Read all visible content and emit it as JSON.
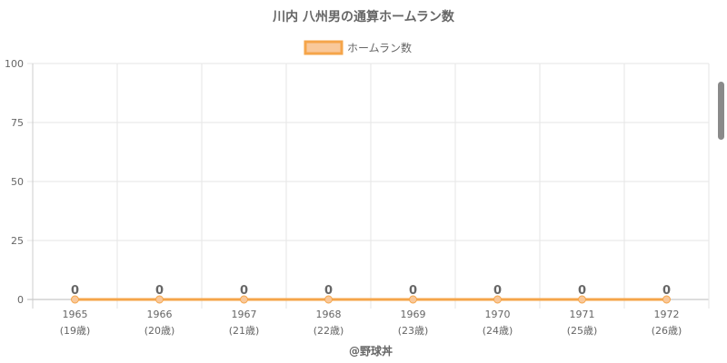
{
  "chart_data": {
    "type": "line",
    "title": "川内 八州男の通算ホームラン数",
    "legend": {
      "label": "ホームラン数",
      "position": "top"
    },
    "categories": [
      "1965",
      "1966",
      "1967",
      "1968",
      "1969",
      "1970",
      "1971",
      "1972"
    ],
    "sublabels": [
      "(19歳)",
      "(20歳)",
      "(21歳)",
      "(22歳)",
      "(23歳)",
      "(24歳)",
      "(25歳)",
      "(26歳)"
    ],
    "series": [
      {
        "name": "ホームラン数",
        "values": [
          0,
          0,
          0,
          0,
          0,
          0,
          0,
          0
        ],
        "color": "#f5a54a",
        "fill": "#f9c89a"
      }
    ],
    "ylim": [
      0,
      100
    ],
    "yticks": [
      0,
      25,
      50,
      75,
      100
    ],
    "grid": true
  },
  "credit": "@野球丼"
}
